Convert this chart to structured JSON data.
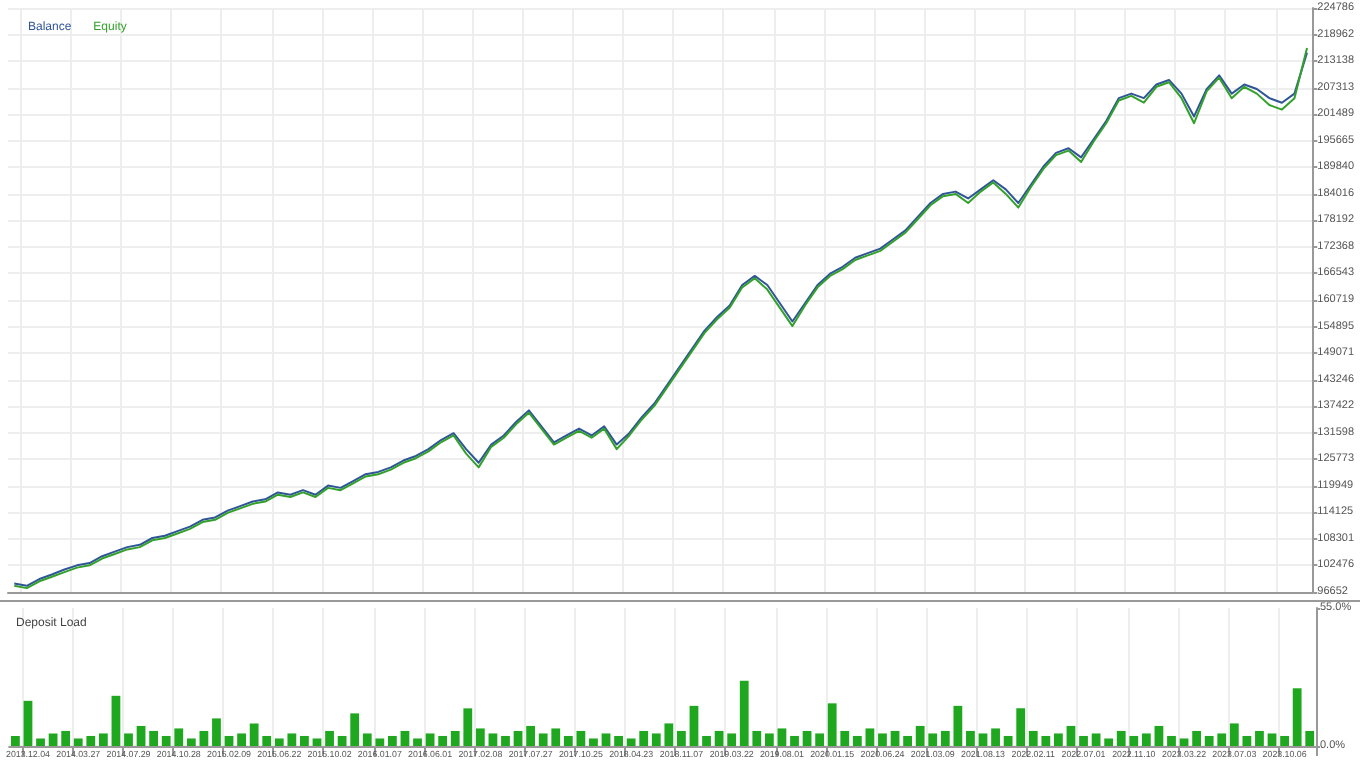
{
  "chart_data": [
    {
      "type": "line",
      "legend": "top left",
      "grid": true,
      "tick_labels": "y",
      "ylim": [
        96652,
        224786
      ],
      "yticks": [
        96652,
        102476,
        108301,
        114125,
        119949,
        125773,
        131598,
        137422,
        143246,
        149071,
        154895,
        160719,
        166543,
        172368,
        178192,
        184016,
        189840,
        195665,
        201489,
        207313,
        213138,
        218962,
        224786
      ],
      "categories": [
        null,
        "2013.12.04",
        null,
        null,
        null,
        "2014.03.27",
        null,
        null,
        null,
        "2014.07.29",
        null,
        null,
        null,
        "2014.10.28",
        null,
        null,
        null,
        "2015.02.09",
        null,
        null,
        null,
        "2015.06.22",
        null,
        null,
        null,
        "2015.10.02",
        null,
        null,
        null,
        "2016.01.07",
        null,
        null,
        null,
        "2016.06.01",
        null,
        null,
        null,
        "2017.02.08",
        null,
        null,
        null,
        "2017.07.27",
        null,
        null,
        null,
        "2017.10.25",
        null,
        null,
        null,
        "2018.04.23",
        null,
        null,
        null,
        "2018.11.07",
        null,
        null,
        null,
        "2019.03.22",
        null,
        null,
        null,
        "2019.08.01",
        null,
        null,
        null,
        "2020.01.15",
        null,
        null,
        null,
        "2020.06.24",
        null,
        null,
        null,
        "2021.03.09",
        null,
        null,
        null,
        "2021.08.13",
        null,
        null,
        null,
        "2022.02.11",
        null,
        null,
        null,
        "2022.07.01",
        null,
        null,
        null,
        "2022.11.10",
        null,
        null,
        null,
        "2023.03.22",
        null,
        null,
        null,
        "2023.07.03",
        null,
        null,
        null,
        "2023.10.06",
        null,
        null
      ],
      "series": [
        {
          "name": "Balance",
          "color": "#2f5597",
          "values": [
            98500,
            98000,
            99500,
            100500,
            101600,
            102500,
            103000,
            104500,
            105500,
            106500,
            107000,
            108500,
            109000,
            110000,
            111000,
            112500,
            113000,
            114500,
            115500,
            116500,
            117000,
            118500,
            118000,
            119000,
            118000,
            120000,
            119500,
            121000,
            122500,
            123000,
            124000,
            125500,
            126500,
            128000,
            130000,
            131500,
            128000,
            125000,
            129000,
            131000,
            134000,
            136500,
            133000,
            129500,
            131000,
            132500,
            131000,
            133000,
            129000,
            131500,
            135000,
            138000,
            142000,
            146000,
            150000,
            154000,
            157000,
            159500,
            164000,
            166000,
            164000,
            160000,
            156000,
            160000,
            164000,
            166500,
            168000,
            170000,
            171000,
            172000,
            174000,
            176000,
            179000,
            182000,
            184000,
            184500,
            183000,
            185000,
            187000,
            185000,
            182000,
            186000,
            190000,
            193000,
            194000,
            192000,
            196000,
            200000,
            205000,
            206000,
            205000,
            208000,
            209000,
            206000,
            201000,
            207000,
            210000,
            206000,
            208000,
            207000,
            205000,
            204000,
            206000,
            215000
          ]
        },
        {
          "name": "Equity",
          "color": "#33a02c",
          "values": [
            98000,
            97500,
            99000,
            100000,
            101000,
            102000,
            102500,
            104000,
            105000,
            106000,
            106500,
            108000,
            108500,
            109500,
            110500,
            112000,
            112500,
            114000,
            115000,
            116000,
            116500,
            118000,
            117500,
            118500,
            117500,
            119500,
            119000,
            120500,
            122000,
            122500,
            123500,
            125000,
            126000,
            127500,
            129500,
            131000,
            127000,
            124000,
            128500,
            130500,
            133500,
            136000,
            132500,
            129000,
            130500,
            132000,
            130500,
            132500,
            128000,
            131000,
            134500,
            137500,
            141500,
            145500,
            149500,
            153500,
            156500,
            159000,
            163500,
            165500,
            163000,
            159000,
            155000,
            159500,
            163500,
            166000,
            167500,
            169500,
            170500,
            171500,
            173500,
            175500,
            178500,
            181500,
            183500,
            184000,
            182000,
            184500,
            186500,
            184000,
            181000,
            185500,
            189500,
            192500,
            193500,
            191000,
            195500,
            199500,
            204500,
            205500,
            204000,
            207500,
            208500,
            205000,
            199500,
            206500,
            209500,
            205000,
            207500,
            206000,
            203500,
            202500,
            205000,
            216000
          ]
        }
      ]
    },
    {
      "type": "bar",
      "title": "Deposit Load",
      "color": "#1fa81f",
      "grid": "x",
      "ylim": [
        0,
        55
      ],
      "yticks": [
        {
          "value": 0,
          "label": "0.0%"
        },
        {
          "value": 55,
          "label": "55.0%"
        }
      ],
      "categories": [
        null,
        "2013.12.04",
        null,
        null,
        null,
        "2014.03.27",
        null,
        null,
        null,
        "2014.07.29",
        null,
        null,
        null,
        "2014.10.28",
        null,
        null,
        null,
        "2015.02.09",
        null,
        null,
        null,
        "2015.06.22",
        null,
        null,
        null,
        "2015.10.02",
        null,
        null,
        null,
        "2016.01.07",
        null,
        null,
        null,
        "2016.06.01",
        null,
        null,
        null,
        "2017.02.08",
        null,
        null,
        null,
        "2017.07.27",
        null,
        null,
        null,
        "2017.10.25",
        null,
        null,
        null,
        "2018.04.23",
        null,
        null,
        null,
        "2018.11.07",
        null,
        null,
        null,
        "2019.03.22",
        null,
        null,
        null,
        "2019.08.01",
        null,
        null,
        null,
        "2020.01.15",
        null,
        null,
        null,
        "2020.06.24",
        null,
        null,
        null,
        "2021.03.09",
        null,
        null,
        null,
        "2021.08.13",
        null,
        null,
        null,
        "2022.02.11",
        null,
        null,
        null,
        "2022.07.01",
        null,
        null,
        null,
        "2022.11.10",
        null,
        null,
        null,
        "2023.03.22",
        null,
        null,
        null,
        "2023.07.03",
        null,
        null,
        null,
        "2023.10.06",
        null,
        null
      ],
      "values": [
        4,
        18,
        3,
        5,
        6,
        3,
        4,
        5,
        20,
        5,
        8,
        6,
        4,
        7,
        3,
        6,
        11,
        4,
        5,
        9,
        4,
        3,
        5,
        4,
        3,
        6,
        4,
        13,
        5,
        3,
        4,
        6,
        3,
        5,
        4,
        6,
        15,
        7,
        5,
        4,
        6,
        8,
        5,
        7,
        4,
        6,
        3,
        5,
        4,
        3,
        6,
        5,
        9,
        6,
        16,
        4,
        6,
        5,
        26,
        6,
        5,
        7,
        4,
        6,
        5,
        17,
        6,
        4,
        7,
        5,
        6,
        4,
        8,
        5,
        6,
        16,
        6,
        5,
        7,
        4,
        15,
        6,
        4,
        5,
        8,
        4,
        5,
        3,
        6,
        4,
        5,
        8,
        4,
        3,
        6,
        4,
        5,
        9,
        4,
        6,
        5,
        4,
        23,
        6
      ]
    }
  ]
}
